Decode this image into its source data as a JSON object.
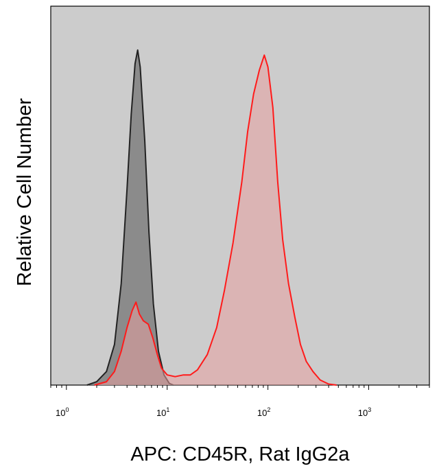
{
  "chart_data": {
    "type": "area",
    "title": "",
    "xlabel": "APC: CD45R, Rat IgG2a",
    "ylabel": "Relative Cell Number",
    "x_scale": "log",
    "xlim": [
      0.7,
      4000
    ],
    "ylim": [
      0,
      1.0
    ],
    "x_ticks": [
      {
        "base": "10",
        "exp": "0",
        "value": 1
      },
      {
        "base": "10",
        "exp": "1",
        "value": 10
      },
      {
        "base": "10",
        "exp": "2",
        "value": 100
      },
      {
        "base": "10",
        "exp": "3",
        "value": 1000
      }
    ],
    "grid": false,
    "legend": "none",
    "background_color": "#cccccc",
    "series": [
      {
        "color": "#222222",
        "fill": "#7f7f7f",
        "points": [
          [
            1.6,
            0.0
          ],
          [
            2.0,
            0.01
          ],
          [
            2.5,
            0.04
          ],
          [
            3.0,
            0.12
          ],
          [
            3.5,
            0.3
          ],
          [
            4.0,
            0.58
          ],
          [
            4.4,
            0.8
          ],
          [
            4.8,
            0.95
          ],
          [
            5.1,
            0.99
          ],
          [
            5.4,
            0.94
          ],
          [
            6.0,
            0.72
          ],
          [
            6.6,
            0.45
          ],
          [
            7.3,
            0.24
          ],
          [
            8.2,
            0.1
          ],
          [
            9.3,
            0.03
          ],
          [
            10.5,
            0.005
          ],
          [
            11.5,
            0.0
          ]
        ]
      },
      {
        "color": "#ff1a1a",
        "fill": "#e8a0a0",
        "points": [
          [
            1.9,
            0.0
          ],
          [
            2.5,
            0.01
          ],
          [
            3.0,
            0.04
          ],
          [
            3.5,
            0.1
          ],
          [
            4.0,
            0.17
          ],
          [
            4.5,
            0.22
          ],
          [
            4.9,
            0.245
          ],
          [
            5.3,
            0.21
          ],
          [
            5.8,
            0.19
          ],
          [
            6.5,
            0.18
          ],
          [
            7.2,
            0.14
          ],
          [
            8.0,
            0.09
          ],
          [
            8.8,
            0.05
          ],
          [
            10.0,
            0.03
          ],
          [
            12.0,
            0.025
          ],
          [
            14.5,
            0.03
          ],
          [
            17.0,
            0.03
          ],
          [
            20.0,
            0.045
          ],
          [
            25.0,
            0.09
          ],
          [
            31.0,
            0.17
          ],
          [
            37.0,
            0.28
          ],
          [
            45.0,
            0.42
          ],
          [
            55.0,
            0.6
          ],
          [
            63.0,
            0.75
          ],
          [
            72.0,
            0.86
          ],
          [
            82.0,
            0.93
          ],
          [
            92.0,
            0.975
          ],
          [
            100.0,
            0.94
          ],
          [
            112.0,
            0.82
          ],
          [
            125.0,
            0.6
          ],
          [
            140.0,
            0.43
          ],
          [
            160.0,
            0.3
          ],
          [
            185.0,
            0.2
          ],
          [
            210.0,
            0.12
          ],
          [
            240.0,
            0.07
          ],
          [
            280.0,
            0.04
          ],
          [
            330.0,
            0.015
          ],
          [
            400.0,
            0.003
          ],
          [
            480.0,
            0.0
          ]
        ]
      }
    ]
  }
}
